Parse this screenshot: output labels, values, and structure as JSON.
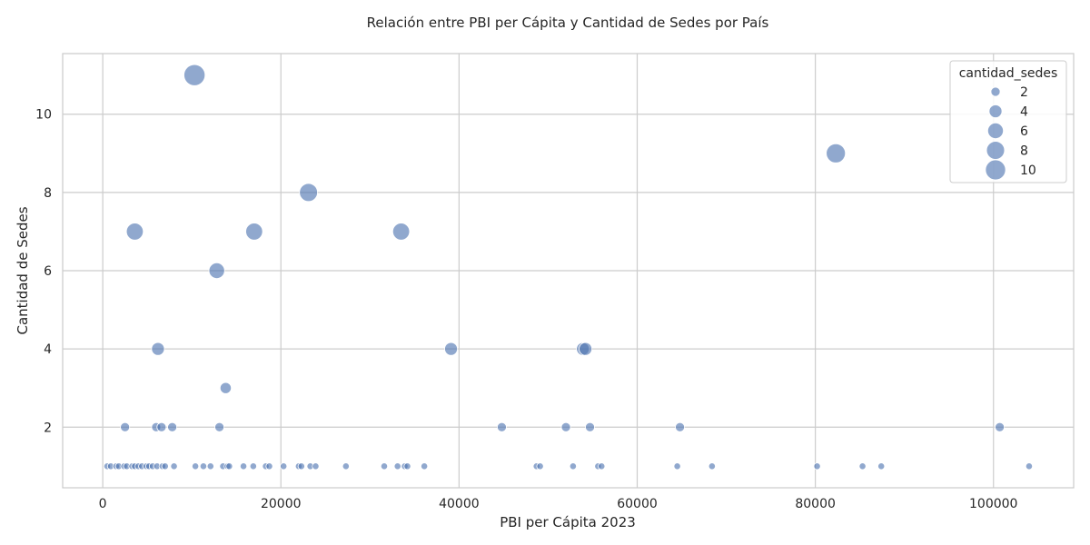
{
  "chart_data": {
    "type": "scatter",
    "title": "Relación entre PBI per Cápita y Cantidad de Sedes por País",
    "xlabel": "PBI per Cápita 2023",
    "ylabel": "Cantidad de Sedes",
    "xlim": [
      -4500,
      109000
    ],
    "ylim": [
      0.45,
      11.55
    ],
    "x_ticks": [
      0,
      20000,
      40000,
      60000,
      80000,
      100000
    ],
    "y_ticks": [
      2,
      4,
      6,
      8,
      10
    ],
    "grid": true,
    "legend": {
      "title": "cantidad_sedes",
      "placement": "top-right",
      "entries": [
        {
          "label": "2",
          "value": 2
        },
        {
          "label": "4",
          "value": 4
        },
        {
          "label": "6",
          "value": 6
        },
        {
          "label": "8",
          "value": 8
        },
        {
          "label": "10",
          "value": 10
        }
      ]
    },
    "color": "#4c72b0",
    "size_encoding": "cantidad_sedes",
    "points": [
      {
        "x": 10300,
        "y": 11
      },
      {
        "x": 82300,
        "y": 9
      },
      {
        "x": 23100,
        "y": 8
      },
      {
        "x": 3600,
        "y": 7
      },
      {
        "x": 17000,
        "y": 7
      },
      {
        "x": 33500,
        "y": 7
      },
      {
        "x": 12800,
        "y": 6
      },
      {
        "x": 6200,
        "y": 4
      },
      {
        "x": 39100,
        "y": 4
      },
      {
        "x": 53900,
        "y": 4
      },
      {
        "x": 54200,
        "y": 4
      },
      {
        "x": 13800,
        "y": 3
      },
      {
        "x": 2500,
        "y": 2
      },
      {
        "x": 6000,
        "y": 2
      },
      {
        "x": 6600,
        "y": 2
      },
      {
        "x": 7800,
        "y": 2
      },
      {
        "x": 13100,
        "y": 2
      },
      {
        "x": 44800,
        "y": 2
      },
      {
        "x": 52000,
        "y": 2
      },
      {
        "x": 54700,
        "y": 2
      },
      {
        "x": 64800,
        "y": 2
      },
      {
        "x": 100700,
        "y": 2
      },
      {
        "x": 500,
        "y": 1
      },
      {
        "x": 900,
        "y": 1
      },
      {
        "x": 1500,
        "y": 1
      },
      {
        "x": 1800,
        "y": 1
      },
      {
        "x": 2400,
        "y": 1
      },
      {
        "x": 2700,
        "y": 1
      },
      {
        "x": 3300,
        "y": 1
      },
      {
        "x": 3600,
        "y": 1
      },
      {
        "x": 4000,
        "y": 1
      },
      {
        "x": 4400,
        "y": 1
      },
      {
        "x": 4900,
        "y": 1
      },
      {
        "x": 5200,
        "y": 1
      },
      {
        "x": 5600,
        "y": 1
      },
      {
        "x": 6100,
        "y": 1
      },
      {
        "x": 6700,
        "y": 1
      },
      {
        "x": 7000,
        "y": 1
      },
      {
        "x": 8000,
        "y": 1
      },
      {
        "x": 10400,
        "y": 1
      },
      {
        "x": 11300,
        "y": 1
      },
      {
        "x": 12100,
        "y": 1
      },
      {
        "x": 13500,
        "y": 1
      },
      {
        "x": 14000,
        "y": 1
      },
      {
        "x": 14200,
        "y": 1
      },
      {
        "x": 15800,
        "y": 1
      },
      {
        "x": 16900,
        "y": 1
      },
      {
        "x": 18300,
        "y": 1
      },
      {
        "x": 18700,
        "y": 1
      },
      {
        "x": 20300,
        "y": 1
      },
      {
        "x": 22000,
        "y": 1
      },
      {
        "x": 22300,
        "y": 1
      },
      {
        "x": 23300,
        "y": 1
      },
      {
        "x": 23900,
        "y": 1
      },
      {
        "x": 27300,
        "y": 1
      },
      {
        "x": 31600,
        "y": 1
      },
      {
        "x": 33100,
        "y": 1
      },
      {
        "x": 33900,
        "y": 1
      },
      {
        "x": 34200,
        "y": 1
      },
      {
        "x": 36100,
        "y": 1
      },
      {
        "x": 48700,
        "y": 1
      },
      {
        "x": 49100,
        "y": 1
      },
      {
        "x": 52800,
        "y": 1
      },
      {
        "x": 55600,
        "y": 1
      },
      {
        "x": 56000,
        "y": 1
      },
      {
        "x": 64500,
        "y": 1
      },
      {
        "x": 68400,
        "y": 1
      },
      {
        "x": 80200,
        "y": 1
      },
      {
        "x": 85300,
        "y": 1
      },
      {
        "x": 87400,
        "y": 1
      },
      {
        "x": 104000,
        "y": 1
      }
    ]
  }
}
